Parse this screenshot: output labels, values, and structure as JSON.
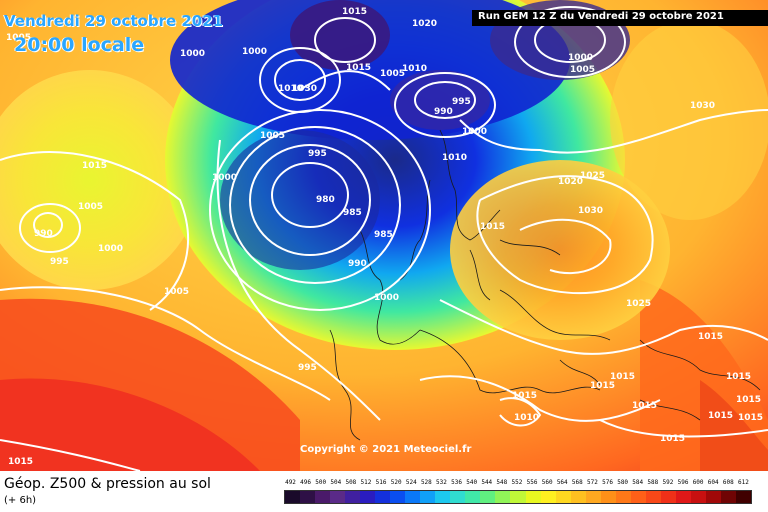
{
  "header": {
    "date": "Vendredi 29 octobre 2021",
    "time": "20:00 locale",
    "run": "Run GEM 12 Z du Vendredi 29 octobre 2021"
  },
  "copyright": "Copyright © 2021 Meteociel.fr",
  "footer": {
    "title": "Géop. Z500 & pression au sol",
    "subtitle": "(+ 6h)"
  },
  "scale": {
    "ticks": [
      "492",
      "496",
      "500",
      "504",
      "508",
      "512",
      "516",
      "520",
      "524",
      "528",
      "532",
      "536",
      "540",
      "544",
      "548",
      "552",
      "556",
      "560",
      "564",
      "568",
      "572",
      "576",
      "580",
      "584",
      "588",
      "592",
      "596",
      "600",
      "604",
      "608",
      "612"
    ],
    "colors": [
      "#1a0a2a",
      "#2e1046",
      "#4a1a6a",
      "#5a2a88",
      "#4020a0",
      "#2a1cc0",
      "#1430dc",
      "#0a4ef0",
      "#0a78f8",
      "#10a0f8",
      "#1cc8ee",
      "#30dcd0",
      "#40e8a8",
      "#60f080",
      "#90f458",
      "#c0f838",
      "#e8f820",
      "#fff020",
      "#ffd820",
      "#ffc020",
      "#ffa820",
      "#ff9018",
      "#ff7818",
      "#ff6018",
      "#f84818",
      "#f03018",
      "#e01818",
      "#c81010",
      "#a00808",
      "#700404",
      "#400000"
    ]
  },
  "isobars": [
    {
      "value": "1015",
      "pos": "top-center"
    },
    {
      "value": "1020",
      "pos": "top"
    },
    {
      "value": "1000",
      "pos": "nw-1"
    },
    {
      "value": "1000",
      "pos": "nw-2"
    },
    {
      "value": "1005",
      "pos": "top-left"
    },
    {
      "value": "1015",
      "pos": "n-1"
    },
    {
      "value": "1005",
      "pos": "n-2"
    },
    {
      "value": "1010",
      "pos": "n-3"
    },
    {
      "value": "1030",
      "pos": "n-high"
    },
    {
      "value": "1010",
      "pos": "n-high2"
    },
    {
      "value": "1000",
      "pos": "ne-1"
    },
    {
      "value": "1005",
      "pos": "ne-2"
    },
    {
      "value": "995",
      "pos": "n-low1"
    },
    {
      "value": "990",
      "pos": "n-low2"
    },
    {
      "value": "1000",
      "pos": "n-low3"
    },
    {
      "value": "1005",
      "pos": "ice"
    },
    {
      "value": "1030",
      "pos": "east"
    },
    {
      "value": "995",
      "pos": "low-ring"
    },
    {
      "value": "980",
      "pos": "low-center"
    },
    {
      "value": "985",
      "pos": "low-s"
    },
    {
      "value": "985",
      "pos": "low-e"
    },
    {
      "value": "990",
      "pos": "low-se"
    },
    {
      "value": "1000",
      "pos": "w-1"
    },
    {
      "value": "1015",
      "pos": "w-2"
    },
    {
      "value": "1005",
      "pos": "w-3"
    },
    {
      "value": "990",
      "pos": "w-low"
    },
    {
      "value": "995",
      "pos": "w-low2"
    },
    {
      "value": "1000",
      "pos": "w-4"
    },
    {
      "value": "1005",
      "pos": "atl"
    },
    {
      "value": "1000",
      "pos": "uk"
    },
    {
      "value": "995",
      "pos": "sw"
    },
    {
      "value": "1010",
      "pos": "scan"
    },
    {
      "value": "1015",
      "pos": "scan2"
    },
    {
      "value": "1020",
      "pos": "rus-1"
    },
    {
      "value": "1025",
      "pos": "rus-2"
    },
    {
      "value": "1030",
      "pos": "rus-3"
    },
    {
      "value": "1025",
      "pos": "rus-4"
    },
    {
      "value": "1015",
      "pos": "e-1"
    },
    {
      "value": "1015",
      "pos": "e-2"
    },
    {
      "value": "1015",
      "pos": "e-3"
    },
    {
      "value": "1015",
      "pos": "e-4"
    },
    {
      "value": "1015",
      "pos": "e-5"
    },
    {
      "value": "1015",
      "pos": "e-6"
    },
    {
      "value": "1015",
      "pos": "med-1"
    },
    {
      "value": "1010",
      "pos": "med-2"
    },
    {
      "value": "1015",
      "pos": "med-3"
    },
    {
      "value": "1015",
      "pos": "med-4"
    },
    {
      "value": "1015",
      "pos": "med-5"
    },
    {
      "value": "1015",
      "pos": "sw-corner"
    }
  ]
}
